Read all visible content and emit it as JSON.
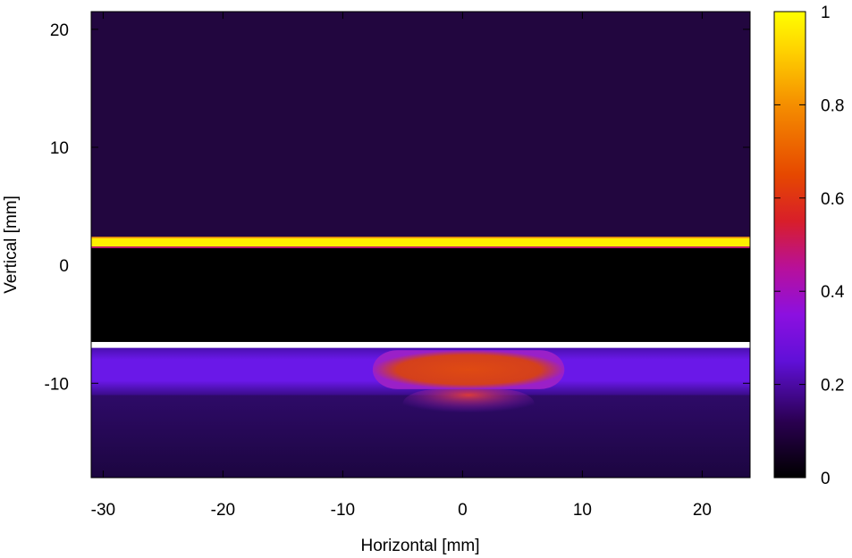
{
  "chart_data": {
    "type": "heatmap",
    "title": "",
    "xlabel": "Horizontal [mm]",
    "ylabel": "Vertical [mm]",
    "xlim": [
      -31,
      24
    ],
    "ylim": [
      -18,
      21.5
    ],
    "x_ticks": [
      {
        "value": -30,
        "label": "-30"
      },
      {
        "value": -20,
        "label": "-20"
      },
      {
        "value": -10,
        "label": "-10"
      },
      {
        "value": 0,
        "label": "0"
      },
      {
        "value": 10,
        "label": "10"
      },
      {
        "value": 20,
        "label": "20"
      }
    ],
    "y_ticks": [
      {
        "value": 20,
        "label": "20"
      },
      {
        "value": 10,
        "label": "10"
      },
      {
        "value": 0,
        "label": "0"
      },
      {
        "value": -10,
        "label": "-10"
      }
    ],
    "colorbar": {
      "range": [
        0,
        1
      ],
      "colormap": "gnuplot-black-purple-red-yellow",
      "ticks": [
        {
          "value": 0,
          "label": "0"
        },
        {
          "value": 0.2,
          "label": "0.2"
        },
        {
          "value": 0.4,
          "label": "0.4"
        },
        {
          "value": 0.6,
          "label": "0.6"
        },
        {
          "value": 0.8,
          "label": "0.8"
        },
        {
          "value": 1,
          "label": "1"
        }
      ]
    },
    "regions": [
      {
        "name": "upper background",
        "x": [
          -31,
          24
        ],
        "y": [
          2.3,
          21.5
        ],
        "value": 0.08
      },
      {
        "name": "bright horizontal line",
        "x": [
          -31,
          24
        ],
        "y": [
          1.6,
          2.3
        ],
        "value": 1.0
      },
      {
        "name": "dark gap",
        "x": [
          -31,
          24
        ],
        "y": [
          -6.5,
          1.6
        ],
        "value": 0.0
      },
      {
        "name": "wide band",
        "x": [
          -31,
          24
        ],
        "y": [
          -11,
          -7
        ],
        "value": 0.22
      },
      {
        "name": "central hot spot",
        "x": [
          -7.5,
          8.5
        ],
        "y": [
          -10.5,
          -7.2
        ],
        "value": 0.62
      },
      {
        "name": "lower tail",
        "x": [
          -5,
          6
        ],
        "y": [
          -13,
          -10.5
        ],
        "value": 0.5
      },
      {
        "name": "lower background",
        "x": [
          -31,
          24
        ],
        "y": [
          -18,
          -11
        ],
        "value": 0.1
      }
    ]
  }
}
